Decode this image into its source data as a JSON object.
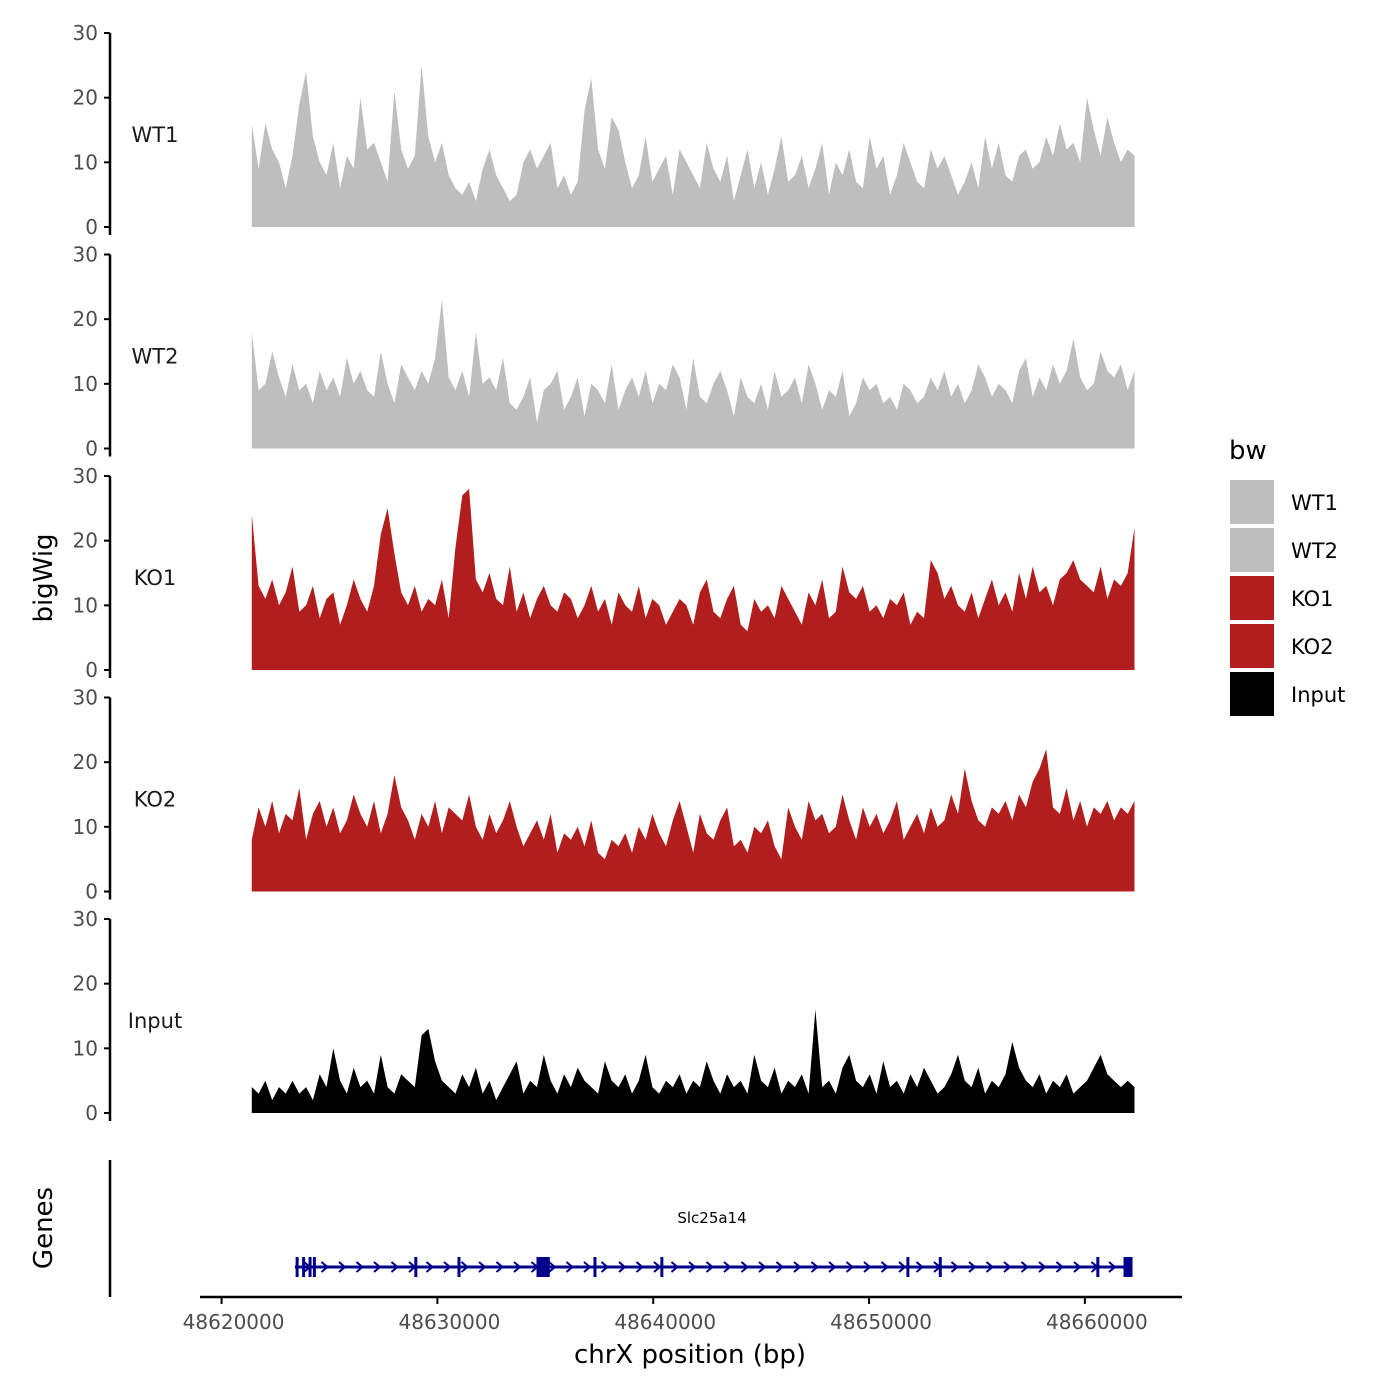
{
  "chart_data": {
    "type": "area",
    "ylabel": "bigWig",
    "xlabel": "chrX position (bp)",
    "ylim": [
      0,
      30
    ],
    "yticks": [
      0,
      10,
      20,
      30
    ],
    "xlim": [
      48619000,
      48664500
    ],
    "xticks": [
      48620000,
      48630000,
      48640000,
      48650000,
      48660000
    ],
    "xtick_labels": [
      "48620000",
      "48630000",
      "48640000",
      "48650000",
      "48660000"
    ],
    "region": [
      48621400,
      48662300
    ],
    "legend": {
      "title": "bw",
      "position": "right",
      "entries": [
        {
          "name": "WT1",
          "color": "#bebebe"
        },
        {
          "name": "WT2",
          "color": "#bebebe"
        },
        {
          "name": "KO1",
          "color": "#b21e1e"
        },
        {
          "name": "KO2",
          "color": "#b21e1e"
        },
        {
          "name": "Input",
          "color": "#000000"
        }
      ]
    },
    "series": [
      {
        "name": "WT1",
        "color": "#bebebe",
        "values": [
          16,
          9,
          16,
          12,
          10,
          6,
          11,
          19,
          24,
          14,
          10,
          8,
          13,
          6,
          11,
          9,
          20,
          12,
          13,
          10,
          7,
          21,
          12,
          9,
          11,
          25,
          14,
          10,
          13,
          8,
          6,
          5,
          7,
          4,
          9,
          12,
          8,
          6,
          4,
          5,
          10,
          12,
          9,
          11,
          13,
          6,
          8,
          5,
          7,
          18,
          23,
          12,
          9,
          17,
          15,
          10,
          6,
          8,
          14,
          7,
          9,
          11,
          5,
          12,
          10,
          8,
          6,
          13,
          9,
          7,
          11,
          4,
          8,
          12,
          6,
          10,
          5,
          9,
          14,
          7,
          8,
          11,
          6,
          9,
          13,
          5,
          10,
          8,
          12,
          7,
          6,
          14,
          9,
          11,
          5,
          8,
          13,
          10,
          7,
          6,
          12,
          9,
          11,
          8,
          5,
          7,
          10,
          6,
          14,
          9,
          13,
          8,
          7,
          11,
          12,
          9,
          10,
          14,
          11,
          16,
          12,
          13,
          10,
          20,
          15,
          11,
          17,
          13,
          10,
          12,
          11
        ]
      },
      {
        "name": "WT2",
        "color": "#bebebe",
        "values": [
          18,
          9,
          10,
          15,
          11,
          8,
          13,
          9,
          10,
          7,
          12,
          9,
          11,
          8,
          14,
          10,
          12,
          9,
          8,
          15,
          10,
          7,
          13,
          11,
          9,
          12,
          10,
          14,
          23,
          11,
          9,
          12,
          8,
          18,
          10,
          11,
          9,
          14,
          7,
          6,
          8,
          11,
          4,
          9,
          10,
          12,
          6,
          8,
          11,
          5,
          10,
          9,
          7,
          13,
          6,
          9,
          11,
          8,
          12,
          7,
          10,
          9,
          13,
          11,
          6,
          14,
          8,
          7,
          10,
          12,
          9,
          5,
          11,
          8,
          7,
          10,
          6,
          12,
          8,
          9,
          11,
          7,
          13,
          10,
          6,
          9,
          8,
          12,
          5,
          7,
          11,
          9,
          10,
          7,
          8,
          6,
          10,
          9,
          7,
          8,
          11,
          9,
          12,
          8,
          10,
          7,
          9,
          13,
          11,
          8,
          10,
          9,
          7,
          12,
          14,
          8,
          11,
          9,
          13,
          10,
          12,
          17,
          11,
          9,
          10,
          15,
          12,
          11,
          13,
          9,
          12
        ]
      },
      {
        "name": "KO1",
        "color": "#b21e1e",
        "values": [
          24,
          13,
          11,
          14,
          10,
          12,
          16,
          9,
          10,
          13,
          8,
          11,
          12,
          7,
          10,
          14,
          11,
          9,
          13,
          21,
          25,
          18,
          12,
          10,
          13,
          9,
          11,
          10,
          14,
          8,
          19,
          27,
          28,
          14,
          12,
          15,
          11,
          10,
          16,
          9,
          12,
          8,
          11,
          13,
          10,
          9,
          12,
          11,
          8,
          10,
          13,
          9,
          11,
          7,
          12,
          10,
          9,
          13,
          8,
          11,
          10,
          7,
          9,
          11,
          10,
          7,
          12,
          14,
          9,
          8,
          11,
          13,
          7,
          6,
          11,
          9,
          10,
          8,
          13,
          11,
          9,
          7,
          12,
          10,
          14,
          8,
          9,
          16,
          12,
          11,
          13,
          9,
          10,
          8,
          11,
          10,
          12,
          7,
          9,
          8,
          17,
          15,
          11,
          13,
          10,
          9,
          12,
          8,
          11,
          14,
          10,
          12,
          9,
          15,
          11,
          16,
          12,
          13,
          10,
          14,
          15,
          17,
          14,
          13,
          12,
          16,
          11,
          14,
          13,
          15,
          22
        ]
      },
      {
        "name": "KO2",
        "color": "#b21e1e",
        "values": [
          8,
          13,
          10,
          14,
          9,
          12,
          11,
          16,
          8,
          12,
          14,
          10,
          13,
          9,
          11,
          15,
          12,
          10,
          14,
          9,
          12,
          18,
          13,
          11,
          8,
          12,
          10,
          14,
          9,
          13,
          12,
          11,
          15,
          10,
          8,
          12,
          9,
          11,
          14,
          10,
          7,
          9,
          11,
          8,
          12,
          6,
          9,
          8,
          10,
          7,
          11,
          6,
          5,
          8,
          7,
          9,
          6,
          10,
          8,
          12,
          9,
          7,
          11,
          14,
          10,
          6,
          12,
          9,
          8,
          11,
          13,
          7,
          8,
          6,
          10,
          9,
          11,
          7,
          5,
          13,
          10,
          8,
          14,
          11,
          12,
          9,
          10,
          15,
          11,
          8,
          13,
          10,
          12,
          9,
          11,
          14,
          8,
          10,
          12,
          9,
          13,
          10,
          11,
          15,
          12,
          19,
          14,
          11,
          10,
          13,
          12,
          14,
          11,
          15,
          13,
          17,
          19,
          22,
          13,
          12,
          16,
          11,
          14,
          10,
          13,
          12,
          14,
          11,
          13,
          12,
          14
        ]
      },
      {
        "name": "Input",
        "color": "#000000",
        "values": [
          4,
          3,
          5,
          2,
          4,
          3,
          5,
          3,
          4,
          2,
          6,
          4,
          10,
          5,
          3,
          7,
          4,
          5,
          3,
          9,
          4,
          3,
          6,
          5,
          4,
          12,
          13,
          8,
          5,
          4,
          3,
          6,
          4,
          7,
          3,
          5,
          2,
          4,
          6,
          8,
          3,
          5,
          4,
          9,
          5,
          3,
          6,
          4,
          7,
          5,
          4,
          3,
          8,
          5,
          4,
          6,
          3,
          5,
          9,
          4,
          3,
          5,
          4,
          6,
          3,
          5,
          4,
          8,
          5,
          3,
          6,
          4,
          5,
          3,
          9,
          5,
          4,
          7,
          3,
          5,
          4,
          6,
          3,
          16,
          4,
          5,
          3,
          7,
          9,
          5,
          4,
          6,
          3,
          8,
          4,
          5,
          3,
          6,
          4,
          7,
          5,
          3,
          4,
          6,
          9,
          5,
          4,
          7,
          3,
          5,
          4,
          6,
          11,
          7,
          5,
          4,
          6,
          3,
          5,
          4,
          6,
          3,
          4,
          5,
          7,
          9,
          6,
          5,
          4,
          5,
          4
        ]
      }
    ],
    "gene_track": {
      "label": "Genes",
      "gene": "Slc25a14",
      "color": "#00008b",
      "start": 48623400,
      "end": 48662200,
      "exons": [
        48623500,
        48623800,
        48624100,
        48624300,
        48629000,
        48631000,
        48634800,
        48635000,
        48637300,
        48640400,
        48651800,
        48653300,
        48660600,
        48662000
      ]
    }
  }
}
